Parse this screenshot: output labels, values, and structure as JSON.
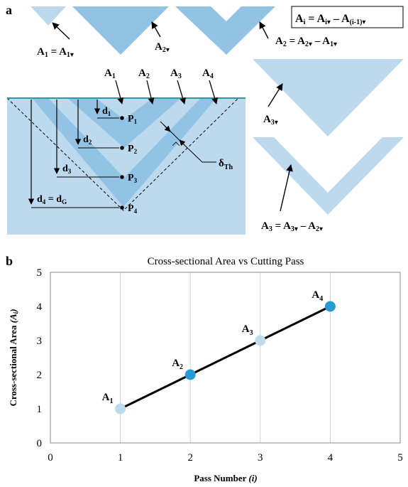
{
  "panel_a": {
    "label": "a",
    "formula": {
      "lhs": "A",
      "lhs_sub": "i",
      "eq": " = ",
      "t1": "A",
      "t1_sub": "i▾",
      "minus": " – ",
      "t2": "A",
      "t2_sub": "(i-1)▾"
    },
    "labels": {
      "a1_eq": {
        "a": "A",
        "a_sub": "1",
        "eq": " = ",
        "b": "A",
        "b_sub": "1▾"
      },
      "a2v": {
        "a": "A",
        "a_sub": "2▾"
      },
      "a2_eq": {
        "a": "A",
        "a_sub": "2",
        "eq": " = ",
        "b": "A",
        "b_sub": "2▾",
        "minus": " – ",
        "c": "A",
        "c_sub": "1▾"
      },
      "a3v": {
        "a": "A",
        "a_sub": "3▾"
      },
      "a3_eq": {
        "a": "A",
        "a_sub": "3",
        "eq": " = ",
        "b": "A",
        "b_sub": "3▾",
        "minus": " – ",
        "c": "A",
        "c_sub": "2▾"
      }
    },
    "top_labels": [
      {
        "a": "A",
        "sub": "1"
      },
      {
        "a": "A",
        "sub": "2"
      },
      {
        "a": "A",
        "sub": "3"
      },
      {
        "a": "A",
        "sub": "4"
      }
    ],
    "depths": [
      {
        "a": "d",
        "sub": "1",
        "eq": "",
        "b": "",
        "b_sub": ""
      },
      {
        "a": "d",
        "sub": "2",
        "eq": "",
        "b": "",
        "b_sub": ""
      },
      {
        "a": "d",
        "sub": "3",
        "eq": "",
        "b": "",
        "b_sub": ""
      },
      {
        "a": "d",
        "sub": "4",
        "eq": " = ",
        "b": "d",
        "b_sub": "G"
      }
    ],
    "points": [
      {
        "a": "P",
        "sub": "1"
      },
      {
        "a": "P",
        "sub": "2"
      },
      {
        "a": "P",
        "sub": "3"
      },
      {
        "a": "P",
        "sub": "4"
      }
    ],
    "delta": {
      "a": "δ",
      "sub": "Th"
    },
    "colors": {
      "light": "#bcd9ee",
      "mid": "#92c3e5",
      "dark": "#6aaedb",
      "surface": "#2a98a6"
    }
  },
  "panel_b": {
    "label": "b"
  },
  "chart_data": {
    "type": "line",
    "title": "Cross-sectional  Area vs Cutting Pass",
    "xlabel": "Pass Number",
    "xlabel_var": "(i)",
    "ylabel": "Cross-sectional  Area",
    "ylabel_var": "(A",
    "ylabel_var_sub": "i",
    "ylabel_var_close": ")",
    "xlim": [
      0,
      5
    ],
    "ylim": [
      0,
      5
    ],
    "xticks": [
      "0",
      "1",
      "2",
      "3",
      "4",
      "5"
    ],
    "yticks": [
      "0",
      "1",
      "2",
      "3",
      "4",
      "5"
    ],
    "grid": "vertical",
    "points": [
      {
        "x": 1,
        "y": 1,
        "label": "A",
        "sub": "1",
        "color": "#bcd9ee"
      },
      {
        "x": 2,
        "y": 2,
        "label": "A",
        "sub": "2",
        "color": "#2a9ad4"
      },
      {
        "x": 3,
        "y": 3,
        "label": "A",
        "sub": "3",
        "color": "#bcd9ee"
      },
      {
        "x": 4,
        "y": 4,
        "label": "A",
        "sub": "4",
        "color": "#2a9ad4"
      }
    ],
    "line_color": "#000000"
  }
}
